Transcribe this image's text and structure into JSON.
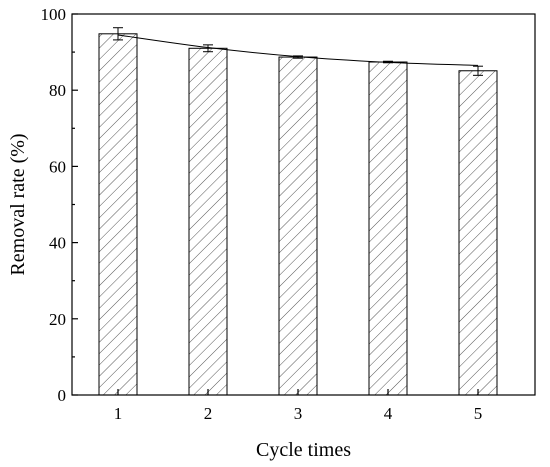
{
  "chart_data": {
    "type": "bar",
    "xlabel": "Cycle times",
    "ylabel": "Removal rate (%)",
    "categories": [
      "1",
      "2",
      "3",
      "4",
      "5"
    ],
    "values": [
      94.8,
      91.0,
      88.7,
      87.4,
      85.1
    ],
    "errors": [
      1.6,
      0.9,
      0.3,
      0.2,
      1.2
    ],
    "trend_line": [
      94.5,
      91.2,
      88.8,
      87.3,
      86.5
    ],
    "ylim": [
      0,
      100
    ],
    "yticks": [
      0,
      20,
      40,
      60,
      80,
      100
    ],
    "fill_pattern": "diagonal-hatch",
    "grid": false,
    "legend": "none"
  }
}
